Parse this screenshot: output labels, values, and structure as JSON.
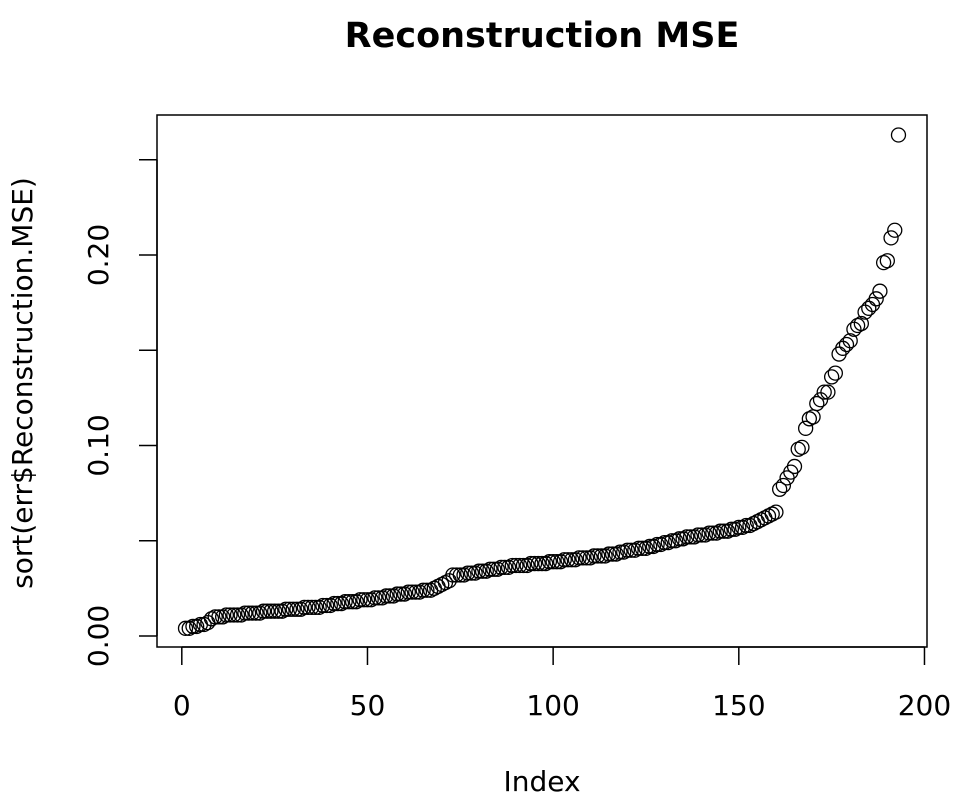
{
  "chart_data": {
    "type": "scatter",
    "title": "Reconstruction MSE",
    "x_label": "Index",
    "y_label": "sort(err$Reconstruction.MSE)",
    "color": "#000000",
    "xlim": [
      -6.68,
      200.68
    ],
    "ylim": [
      -0.0058,
      0.2735
    ],
    "xticks": [
      0,
      50,
      100,
      150,
      200
    ],
    "yticks": [
      {
        "value": 0,
        "label": "0.00"
      },
      {
        "value": 0.05
      },
      {
        "value": 0.1,
        "label": "0.10"
      },
      {
        "value": 0.15
      },
      {
        "value": 0.2,
        "label": "0.20"
      },
      {
        "value": 0.25
      }
    ],
    "x": [
      1,
      2,
      3,
      4,
      5,
      6,
      7,
      8,
      9,
      10,
      11,
      12,
      13,
      14,
      15,
      16,
      17,
      18,
      19,
      20,
      21,
      22,
      23,
      24,
      25,
      26,
      27,
      28,
      29,
      30,
      31,
      32,
      33,
      34,
      35,
      36,
      37,
      38,
      39,
      40,
      41,
      42,
      43,
      44,
      45,
      46,
      47,
      48,
      49,
      50,
      51,
      52,
      53,
      54,
      55,
      56,
      57,
      58,
      59,
      60,
      61,
      62,
      63,
      64,
      65,
      66,
      67,
      68,
      69,
      70,
      71,
      72,
      73,
      74,
      75,
      76,
      77,
      78,
      79,
      80,
      81,
      82,
      83,
      84,
      85,
      86,
      87,
      88,
      89,
      90,
      91,
      92,
      93,
      94,
      95,
      96,
      97,
      98,
      99,
      100,
      101,
      102,
      103,
      104,
      105,
      106,
      107,
      108,
      109,
      110,
      111,
      112,
      113,
      114,
      115,
      116,
      117,
      118,
      119,
      120,
      121,
      122,
      123,
      124,
      125,
      126,
      127,
      128,
      129,
      130,
      131,
      132,
      133,
      134,
      135,
      136,
      137,
      138,
      139,
      140,
      141,
      142,
      143,
      144,
      145,
      146,
      147,
      148,
      149,
      150,
      151,
      152,
      153,
      154,
      155,
      156,
      157,
      158,
      159,
      160,
      161,
      162,
      163,
      164,
      165,
      166,
      167,
      168,
      169,
      170,
      171,
      172,
      173,
      174,
      175,
      176,
      177,
      178,
      179,
      180,
      181,
      182,
      183,
      184,
      185,
      186,
      187,
      188,
      189,
      190,
      191,
      192,
      193
    ],
    "values": [
      0.004,
      0.004,
      0.005,
      0.005,
      0.006,
      0.006,
      0.007,
      0.009,
      0.01,
      0.01,
      0.01,
      0.011,
      0.011,
      0.011,
      0.011,
      0.011,
      0.012,
      0.012,
      0.012,
      0.012,
      0.012,
      0.013,
      0.013,
      0.013,
      0.013,
      0.013,
      0.013,
      0.014,
      0.014,
      0.014,
      0.014,
      0.014,
      0.015,
      0.015,
      0.015,
      0.015,
      0.015,
      0.016,
      0.016,
      0.016,
      0.017,
      0.017,
      0.017,
      0.018,
      0.018,
      0.018,
      0.018,
      0.019,
      0.019,
      0.019,
      0.019,
      0.02,
      0.02,
      0.02,
      0.021,
      0.021,
      0.021,
      0.022,
      0.022,
      0.022,
      0.023,
      0.023,
      0.023,
      0.023,
      0.024,
      0.024,
      0.024,
      0.025,
      0.026,
      0.027,
      0.028,
      0.029,
      0.032,
      0.032,
      0.032,
      0.032,
      0.033,
      0.033,
      0.033,
      0.034,
      0.034,
      0.034,
      0.035,
      0.035,
      0.035,
      0.036,
      0.036,
      0.036,
      0.037,
      0.037,
      0.037,
      0.037,
      0.037,
      0.038,
      0.038,
      0.038,
      0.038,
      0.038,
      0.039,
      0.039,
      0.039,
      0.039,
      0.04,
      0.04,
      0.04,
      0.04,
      0.041,
      0.041,
      0.041,
      0.041,
      0.042,
      0.042,
      0.042,
      0.042,
      0.043,
      0.043,
      0.043,
      0.044,
      0.044,
      0.045,
      0.045,
      0.045,
      0.046,
      0.046,
      0.046,
      0.047,
      0.047,
      0.048,
      0.048,
      0.049,
      0.049,
      0.05,
      0.05,
      0.051,
      0.051,
      0.052,
      0.052,
      0.052,
      0.053,
      0.053,
      0.053,
      0.054,
      0.054,
      0.054,
      0.055,
      0.055,
      0.055,
      0.056,
      0.056,
      0.057,
      0.057,
      0.058,
      0.058,
      0.059,
      0.06,
      0.061,
      0.062,
      0.063,
      0.064,
      0.065,
      0.077,
      0.079,
      0.083,
      0.086,
      0.089,
      0.098,
      0.099,
      0.109,
      0.114,
      0.115,
      0.122,
      0.124,
      0.128,
      0.128,
      0.136,
      0.138,
      0.148,
      0.151,
      0.153,
      0.155,
      0.161,
      0.163,
      0.164,
      0.17,
      0.172,
      0.174,
      0.177,
      0.181,
      0.196,
      0.197,
      0.209,
      0.213,
      0.263
    ]
  }
}
